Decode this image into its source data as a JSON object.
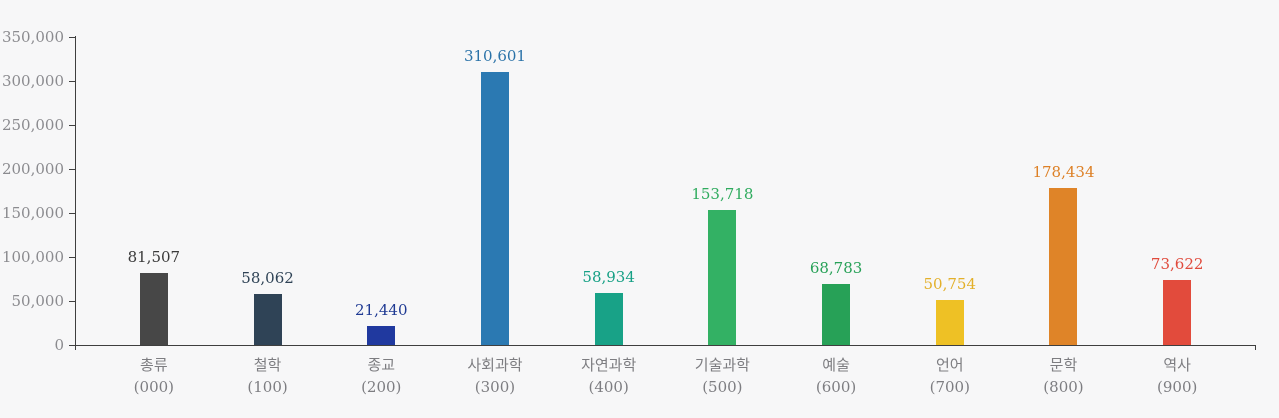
{
  "chart_data": {
    "type": "bar",
    "title": "",
    "xlabel": "",
    "ylabel": "",
    "categories": [
      "총류",
      "철학",
      "종교",
      "사회과학",
      "자연과학",
      "기술과학",
      "예술",
      "언어",
      "문학",
      "역사"
    ],
    "category_codes": [
      "(000)",
      "(100)",
      "(200)",
      "(300)",
      "(400)",
      "(500)",
      "(600)",
      "(700)",
      "(800)",
      "(900)"
    ],
    "values": [
      81507,
      58062,
      21440,
      310601,
      58934,
      153718,
      68783,
      50754,
      178434,
      73622
    ],
    "value_labels": [
      "81,507",
      "58,062",
      "21,440",
      "310,601",
      "58,934",
      "153,718",
      "68,783",
      "50,754",
      "178,434",
      "73,622"
    ],
    "bar_colors": [
      "#474747",
      "#2f4356",
      "#20399f",
      "#2b79b2",
      "#18a287",
      "#33b164",
      "#27a157",
      "#eec125",
      "#df8428",
      "#e24b3c"
    ],
    "value_label_colors": [
      "#3a3a3a",
      "#2f4356",
      "#1f3a93",
      "#2a72a8",
      "#16a085",
      "#2fab5e",
      "#27a157",
      "#e3b02a",
      "#dd8026",
      "#e04a3c"
    ],
    "ylim": [
      0,
      350000
    ],
    "y_tick_values": [
      0,
      50000,
      100000,
      150000,
      200000,
      250000,
      300000,
      350000
    ],
    "y_tick_labels": [
      "0",
      "50,000",
      "100,000",
      "150,000",
      "200,000",
      "250,000",
      "300,000",
      "350,000"
    ],
    "grid": "off",
    "legend": "none",
    "axis_color": "#3f3f3f",
    "tick_label_color": "#8b8b8f",
    "category_label_color": "#7d7d81",
    "background_color": "#f7f7f8"
  }
}
